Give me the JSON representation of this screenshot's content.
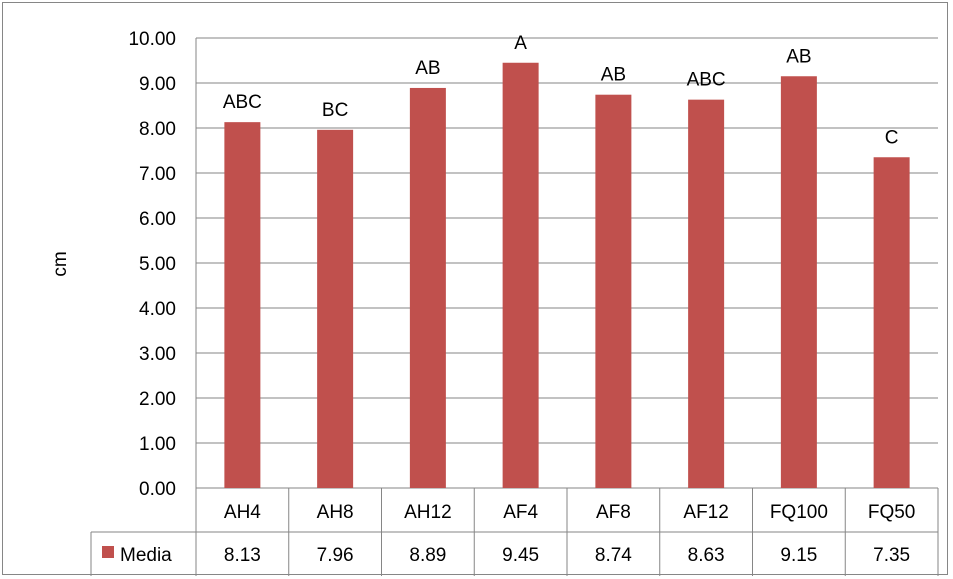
{
  "chart_data": {
    "type": "bar",
    "categories": [
      "AH4",
      "AH8",
      "AH12",
      "AF4",
      "AF8",
      "AF12",
      "FQ100",
      "FQ50"
    ],
    "series": [
      {
        "name": "Media",
        "values": [
          8.13,
          7.96,
          8.89,
          9.45,
          8.74,
          8.63,
          9.15,
          7.35
        ],
        "color": "#c0504d"
      }
    ],
    "letters": [
      "ABC",
      "BC",
      "AB",
      "A",
      "AB",
      "ABC",
      "AB",
      "C"
    ],
    "value_labels": [
      "8.13",
      "7.96",
      "8.89",
      "9.45",
      "8.74",
      "8.63",
      "9.15",
      "7.35"
    ],
    "ylabel": "cm",
    "ylim": [
      0,
      10
    ],
    "yticks": [
      "0.00",
      "1.00",
      "2.00",
      "3.00",
      "4.00",
      "5.00",
      "6.00",
      "7.00",
      "8.00",
      "9.00",
      "10.00"
    ],
    "grid": true,
    "legend": "data-table",
    "legend_label": "Media"
  }
}
